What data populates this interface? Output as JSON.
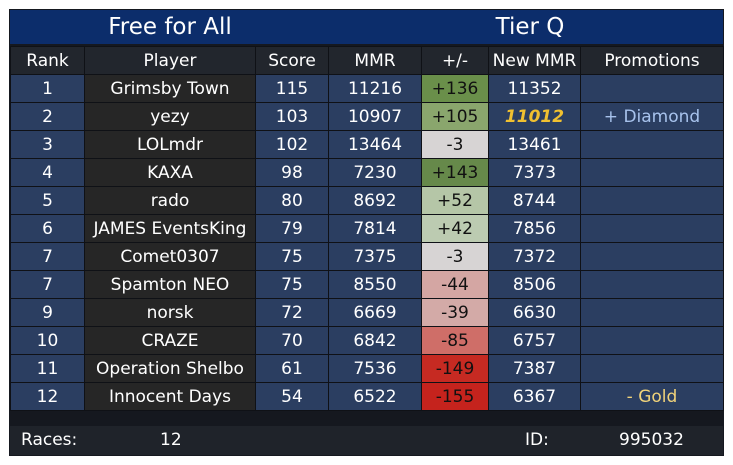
{
  "title": {
    "left": "Free for All",
    "right": "Tier Q"
  },
  "columns": [
    "Rank",
    "Player",
    "Score",
    "MMR",
    "+/-",
    "New MMR",
    "Promotions"
  ],
  "colors": {
    "header_bg": "#0c2d6b",
    "cell_blue": "#2b3e61",
    "cell_dark": "#262626",
    "promo_up": "#a7c2ec",
    "promo_down": "#f1d37a",
    "gold_highlight": "#f0c030"
  },
  "rows": [
    {
      "rank": "1",
      "player": "Grimsby Town",
      "score": "115",
      "mmr": "11216",
      "delta": "+136",
      "delta_color": "#6a8f4a",
      "new_mmr": "11352",
      "new_mmr_highlight": false,
      "promotion": "",
      "promotion_type": ""
    },
    {
      "rank": "2",
      "player": "yezy",
      "score": "103",
      "mmr": "10907",
      "delta": "+105",
      "delta_color": "#8aa66d",
      "new_mmr": "11012",
      "new_mmr_highlight": true,
      "promotion": "+ Diamond",
      "promotion_type": "up"
    },
    {
      "rank": "3",
      "player": "LOLmdr",
      "score": "102",
      "mmr": "13464",
      "delta": "-3",
      "delta_color": "#d7d4d4",
      "new_mmr": "13461",
      "new_mmr_highlight": false,
      "promotion": "",
      "promotion_type": ""
    },
    {
      "rank": "4",
      "player": "KAXA",
      "score": "98",
      "mmr": "7230",
      "delta": "+143",
      "delta_color": "#66894a",
      "new_mmr": "7373",
      "new_mmr_highlight": false,
      "promotion": "",
      "promotion_type": ""
    },
    {
      "rank": "5",
      "player": "rado",
      "score": "80",
      "mmr": "8692",
      "delta": "+52",
      "delta_color": "#b5c6a7",
      "new_mmr": "8744",
      "new_mmr_highlight": false,
      "promotion": "",
      "promotion_type": ""
    },
    {
      "rank": "6",
      "player": "JAMES EventsKing",
      "score": "79",
      "mmr": "7814",
      "delta": "+42",
      "delta_color": "#bccbb1",
      "new_mmr": "7856",
      "new_mmr_highlight": false,
      "promotion": "",
      "promotion_type": ""
    },
    {
      "rank": "7",
      "player": "Comet0307",
      "score": "75",
      "mmr": "7375",
      "delta": "-3",
      "delta_color": "#d7d4d4",
      "new_mmr": "7372",
      "new_mmr_highlight": false,
      "promotion": "",
      "promotion_type": ""
    },
    {
      "rank": "7",
      "player": "Spamton NEO",
      "score": "75",
      "mmr": "8550",
      "delta": "-44",
      "delta_color": "#d4a6a3",
      "new_mmr": "8506",
      "new_mmr_highlight": false,
      "promotion": "",
      "promotion_type": ""
    },
    {
      "rank": "9",
      "player": "norsk",
      "score": "72",
      "mmr": "6669",
      "delta": "-39",
      "delta_color": "#d3aaa7",
      "new_mmr": "6630",
      "new_mmr_highlight": false,
      "promotion": "",
      "promotion_type": ""
    },
    {
      "rank": "10",
      "player": "CRAZE",
      "score": "70",
      "mmr": "6842",
      "delta": "-85",
      "delta_color": "#cf6e68",
      "new_mmr": "6757",
      "new_mmr_highlight": false,
      "promotion": "",
      "promotion_type": ""
    },
    {
      "rank": "11",
      "player": "Operation Shelbo",
      "score": "61",
      "mmr": "7536",
      "delta": "-149",
      "delta_color": "#c62a22",
      "new_mmr": "7387",
      "new_mmr_highlight": false,
      "promotion": "",
      "promotion_type": ""
    },
    {
      "rank": "12",
      "player": "Innocent Days",
      "score": "54",
      "mmr": "6522",
      "delta": "-155",
      "delta_color": "#c5231d",
      "new_mmr": "6367",
      "new_mmr_highlight": false,
      "promotion": "- Gold",
      "promotion_type": "down"
    }
  ],
  "footer": {
    "races_label": "Races:",
    "races_value": "12",
    "id_label": "ID:",
    "id_value": "995032"
  }
}
